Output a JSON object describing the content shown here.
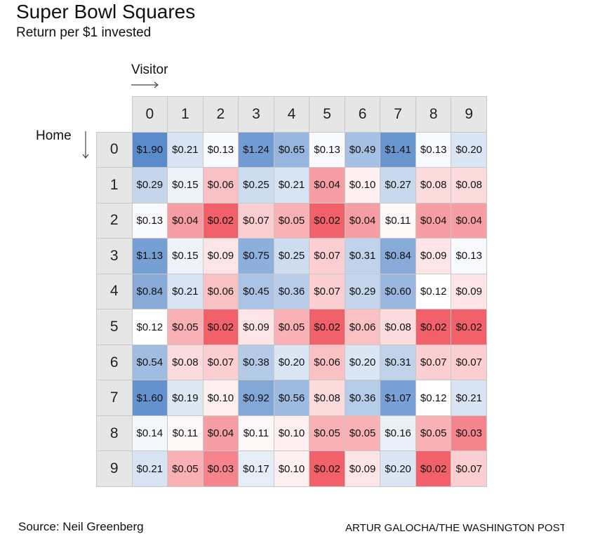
{
  "title": "Super Bowl Squares",
  "subtitle": "Return per $1 invested",
  "source": "Source: Neil Greenberg",
  "credit": "ARTUR GALOCHA/THE WASHINGTON POST",
  "colors": {
    "high": "#5a8bcb",
    "neutral": "#ffffff",
    "low": "#f2606a",
    "header": "#e6e6e6"
  },
  "chart_data": {
    "type": "heatmap",
    "title": "Super Bowl Squares",
    "subtitle": "Return per $1 invested",
    "xlabel": "Visitor",
    "ylabel": "Home",
    "x": [
      "0",
      "1",
      "2",
      "3",
      "4",
      "5",
      "6",
      "7",
      "8",
      "9"
    ],
    "y": [
      "0",
      "1",
      "2",
      "3",
      "4",
      "5",
      "6",
      "7",
      "8",
      "9"
    ],
    "values": [
      [
        1.9,
        0.21,
        0.13,
        1.24,
        0.65,
        0.13,
        0.49,
        1.41,
        0.13,
        0.2
      ],
      [
        0.29,
        0.15,
        0.06,
        0.25,
        0.21,
        0.04,
        0.1,
        0.27,
        0.08,
        0.08
      ],
      [
        0.13,
        0.04,
        0.02,
        0.07,
        0.05,
        0.02,
        0.04,
        0.11,
        0.04,
        0.04
      ],
      [
        1.13,
        0.15,
        0.09,
        0.75,
        0.25,
        0.07,
        0.31,
        0.84,
        0.09,
        0.13
      ],
      [
        0.84,
        0.21,
        0.06,
        0.45,
        0.36,
        0.07,
        0.29,
        0.6,
        0.12,
        0.09
      ],
      [
        0.12,
        0.05,
        0.02,
        0.09,
        0.05,
        0.02,
        0.06,
        0.08,
        0.02,
        0.02
      ],
      [
        0.54,
        0.08,
        0.07,
        0.38,
        0.2,
        0.06,
        0.2,
        0.31,
        0.07,
        0.07
      ],
      [
        1.6,
        0.19,
        0.1,
        0.92,
        0.56,
        0.08,
        0.36,
        1.07,
        0.12,
        0.21
      ],
      [
        0.14,
        0.11,
        0.04,
        0.11,
        0.1,
        0.05,
        0.05,
        0.16,
        0.05,
        0.03
      ],
      [
        0.21,
        0.05,
        0.03,
        0.17,
        0.1,
        0.02,
        0.09,
        0.2,
        0.02,
        0.07
      ]
    ],
    "value_prefix": "$"
  }
}
